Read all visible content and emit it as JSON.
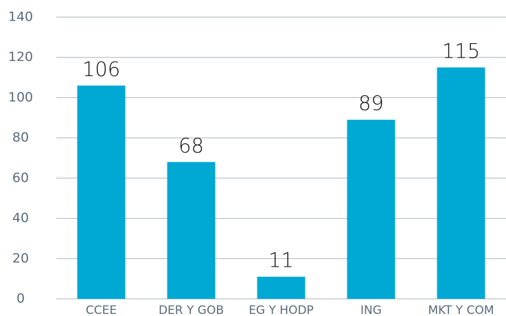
{
  "chart_data": {
    "type": "bar",
    "categories": [
      "CCEE",
      "DER Y GOB",
      "EG Y HODP",
      "ING",
      "MKT Y COM"
    ],
    "values": [
      106,
      68,
      11,
      89,
      115
    ],
    "color": "#00a8d4",
    "ylim": [
      0,
      140
    ],
    "yticks": [
      0,
      20,
      40,
      60,
      80,
      100,
      120,
      140
    ],
    "grid": true
  }
}
